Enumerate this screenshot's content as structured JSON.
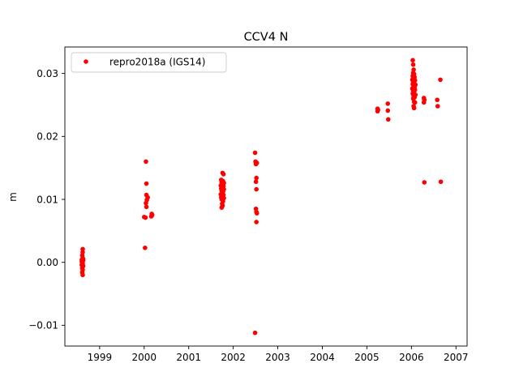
{
  "chart_data": {
    "type": "scatter",
    "title": "CCV4 N",
    "xlabel": "",
    "ylabel": "m",
    "xlim": [
      1998.22,
      2007.25
    ],
    "ylim": [
      -0.0133,
      0.0342
    ],
    "xticks": [
      1999,
      2000,
      2001,
      2002,
      2003,
      2004,
      2005,
      2006,
      2007
    ],
    "xtick_labels": [
      "1999",
      "2000",
      "2001",
      "2002",
      "2003",
      "2004",
      "2005",
      "2006",
      "2007"
    ],
    "yticks": [
      -0.01,
      0.0,
      0.01,
      0.02,
      0.03
    ],
    "ytick_labels": [
      "−0.01",
      "0.00",
      "0.01",
      "0.02",
      "0.03"
    ],
    "grid": false,
    "legend_position": "top-left",
    "series": [
      {
        "name": "repro2018a (IGS14)",
        "color": "#ff0000",
        "marker": "circle",
        "points": [
          [
            1998.62,
            0.0021
          ],
          [
            1998.62,
            0.0016
          ],
          [
            1998.61,
            0.0011
          ],
          [
            1998.62,
            0.0007
          ],
          [
            1998.6,
            0.0004
          ],
          [
            1998.63,
            0.0003
          ],
          [
            1998.61,
            0.0
          ],
          [
            1998.62,
            -0.0002
          ],
          [
            1998.6,
            -0.0004
          ],
          [
            1998.63,
            -0.0006
          ],
          [
            1998.61,
            -0.0009
          ],
          [
            1998.62,
            -0.0012
          ],
          [
            1998.61,
            -0.0016
          ],
          [
            1998.62,
            -0.002
          ],
          [
            1998.63,
            0.0005
          ],
          [
            1998.6,
            0.0001
          ],
          [
            2000.04,
            0.016
          ],
          [
            2000.05,
            0.0125
          ],
          [
            2000.05,
            0.0107
          ],
          [
            2000.08,
            0.0103
          ],
          [
            2000.06,
            0.0099
          ],
          [
            2000.04,
            0.0094
          ],
          [
            2000.05,
            0.0088
          ],
          [
            2000.17,
            0.0077
          ],
          [
            2000.18,
            0.0075
          ],
          [
            2000.16,
            0.0073
          ],
          [
            2000.0,
            0.0072
          ],
          [
            2000.03,
            0.0071
          ],
          [
            2000.02,
            0.0023
          ],
          [
            2001.76,
            0.0142
          ],
          [
            2001.78,
            0.014
          ],
          [
            2001.73,
            0.0131
          ],
          [
            2001.77,
            0.0129
          ],
          [
            2001.74,
            0.0127
          ],
          [
            2001.79,
            0.0126
          ],
          [
            2001.75,
            0.0124
          ],
          [
            2001.72,
            0.0122
          ],
          [
            2001.78,
            0.0121
          ],
          [
            2001.76,
            0.0119
          ],
          [
            2001.73,
            0.0117
          ],
          [
            2001.79,
            0.0116
          ],
          [
            2001.74,
            0.0114
          ],
          [
            2001.77,
            0.0112
          ],
          [
            2001.75,
            0.011
          ],
          [
            2001.72,
            0.0108
          ],
          [
            2001.78,
            0.0107
          ],
          [
            2001.76,
            0.0105
          ],
          [
            2001.73,
            0.0103
          ],
          [
            2001.79,
            0.0102
          ],
          [
            2001.74,
            0.01
          ],
          [
            2001.77,
            0.0097
          ],
          [
            2001.75,
            0.0093
          ],
          [
            2001.76,
            0.009
          ],
          [
            2001.74,
            0.0087
          ],
          [
            2002.49,
            0.0174
          ],
          [
            2002.5,
            0.016
          ],
          [
            2002.53,
            0.0158
          ],
          [
            2002.51,
            0.0156
          ],
          [
            2002.52,
            0.0134
          ],
          [
            2002.51,
            0.0128
          ],
          [
            2002.52,
            0.0116
          ],
          [
            2002.51,
            0.0085
          ],
          [
            2002.52,
            0.008
          ],
          [
            2002.53,
            0.0078
          ],
          [
            2002.52,
            0.0064
          ],
          [
            2002.49,
            -0.0112
          ],
          [
            2005.24,
            0.0244
          ],
          [
            2005.25,
            0.0242
          ],
          [
            2005.24,
            0.024
          ],
          [
            2005.47,
            0.0252
          ],
          [
            2005.47,
            0.0241
          ],
          [
            2005.48,
            0.0227
          ],
          [
            2006.03,
            0.0321
          ],
          [
            2006.04,
            0.0314
          ],
          [
            2006.05,
            0.0306
          ],
          [
            2006.04,
            0.0301
          ],
          [
            2006.06,
            0.0299
          ],
          [
            2006.03,
            0.0296
          ],
          [
            2006.07,
            0.0294
          ],
          [
            2006.05,
            0.0292
          ],
          [
            2006.02,
            0.029
          ],
          [
            2006.08,
            0.0289
          ],
          [
            2006.04,
            0.0287
          ],
          [
            2006.06,
            0.0285
          ],
          [
            2006.03,
            0.0283
          ],
          [
            2006.09,
            0.0282
          ],
          [
            2006.05,
            0.028
          ],
          [
            2006.07,
            0.0278
          ],
          [
            2006.02,
            0.0276
          ],
          [
            2006.08,
            0.0274
          ],
          [
            2006.04,
            0.0272
          ],
          [
            2006.06,
            0.027
          ],
          [
            2006.03,
            0.0268
          ],
          [
            2006.09,
            0.0266
          ],
          [
            2006.05,
            0.0264
          ],
          [
            2006.07,
            0.0262
          ],
          [
            2006.04,
            0.026
          ],
          [
            2006.06,
            0.0255
          ],
          [
            2006.08,
            0.0254
          ],
          [
            2006.05,
            0.0248
          ],
          [
            2006.06,
            0.0245
          ],
          [
            2006.28,
            0.0261
          ],
          [
            2006.29,
            0.0258
          ],
          [
            2006.28,
            0.0254
          ],
          [
            2006.29,
            0.0127
          ],
          [
            2006.58,
            0.0258
          ],
          [
            2006.59,
            0.0248
          ],
          [
            2006.65,
            0.029
          ],
          [
            2006.66,
            0.0128
          ]
        ]
      }
    ]
  }
}
